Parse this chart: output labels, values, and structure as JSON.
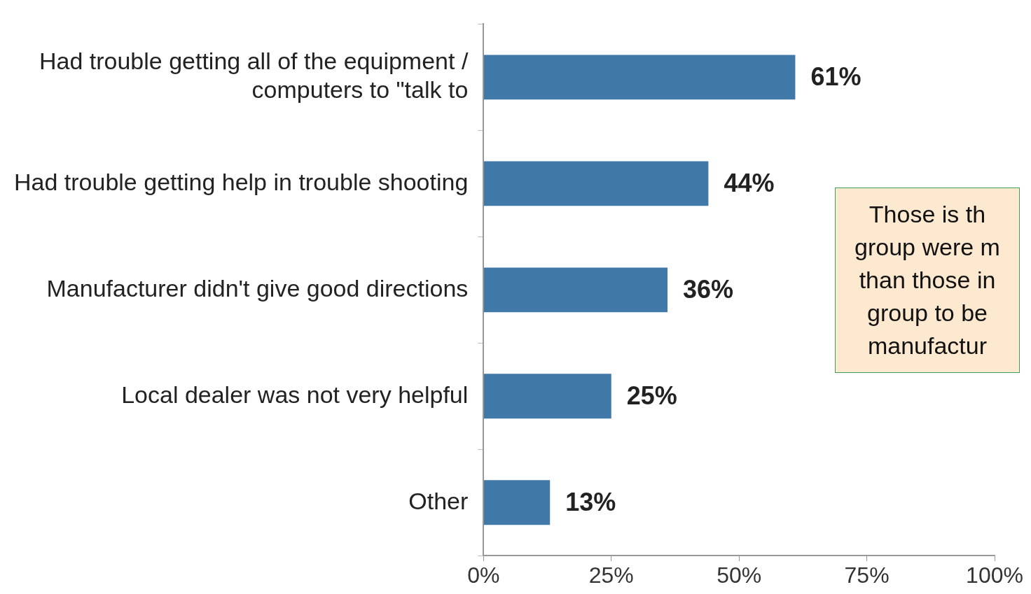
{
  "chart_data": {
    "type": "bar",
    "orientation": "horizontal",
    "categories": [
      "Had trouble getting all of the equipment / computers to \"talk to",
      "Had trouble getting help in trouble shooting",
      "Manufacturer didn't give good directions",
      "Local dealer was not very helpful",
      "Other"
    ],
    "values": [
      61,
      44,
      36,
      25,
      13
    ],
    "value_labels": [
      "61%",
      "44%",
      "36%",
      "25%",
      "13%"
    ],
    "color": "#4078a8",
    "xlim": [
      0,
      100
    ],
    "xticks": [
      {
        "value": 0,
        "label": "0%"
      },
      {
        "value": 25,
        "label": "25%"
      },
      {
        "value": 50,
        "label": "50%"
      },
      {
        "value": 75,
        "label": "75%"
      },
      {
        "value": 100,
        "label": "100%"
      }
    ],
    "grid": false,
    "legend": false,
    "annotations": [
      "Those is th\ngroup were m\nthan those in\ngroup to be\nmanufactur"
    ]
  }
}
